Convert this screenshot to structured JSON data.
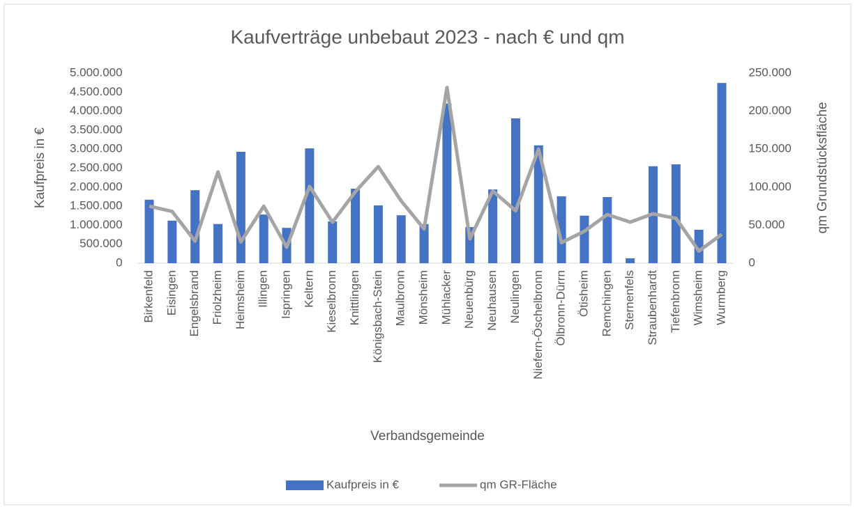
{
  "chart_data": {
    "type": "bar-line",
    "title": "Kaufverträge unbebaut 2023 - nach € und qm",
    "x_label": "Verbandsgemeinde",
    "y_label": "Kaufpreis in €",
    "y2_label": "qm Grundstücksfläche",
    "categories": [
      "Birkenfeld",
      "Eisingen",
      "Engelsbrand",
      "Friolzheim",
      "Heimsheim",
      "Illingen",
      "Ispringen",
      "Keltern",
      "Kieselbronn",
      "Knittlingen",
      "Königsbach-Stein",
      "Maulbronn",
      "Mönsheim",
      "Mühlacker",
      "Neuenbürg",
      "Neuhausen",
      "Neulingen",
      "Niefern-Öschelbronn",
      "Ölbronn-Dürrn",
      "Ötisheim",
      "Remchingen",
      "Sternenfels",
      "Straubenhardt",
      "Tiefenbronn",
      "Wimsheim",
      "Wurmberg"
    ],
    "series": [
      {
        "name": "Kaufpreis in €",
        "type": "bar",
        "color": "#4472c4",
        "axis": "y",
        "values": [
          1670000,
          1120000,
          1920000,
          1030000,
          2930000,
          1280000,
          930000,
          3020000,
          1100000,
          1960000,
          1520000,
          1260000,
          1030000,
          4200000,
          950000,
          1940000,
          3810000,
          3100000,
          1760000,
          1250000,
          1740000,
          130000,
          2550000,
          2600000,
          880000,
          4740000
        ]
      },
      {
        "name": "qm GR-Fläche",
        "type": "line",
        "color": "#a5a5a5",
        "axis": "y2",
        "values": [
          75000,
          68000,
          29000,
          120000,
          28000,
          75000,
          21000,
          101000,
          54000,
          94000,
          127000,
          82000,
          45000,
          231000,
          32000,
          95000,
          69000,
          150000,
          27000,
          42000,
          64000,
          54000,
          65000,
          59000,
          16000,
          38000
        ]
      }
    ],
    "ylim": [
      0,
      5000000
    ],
    "yticks": [
      0,
      {
        "value": 500000,
        "label": "500.000"
      },
      {
        "value": 1000000,
        "label": "1.000.000"
      },
      {
        "value": 1500000,
        "label": "1.500.000"
      },
      {
        "value": 2000000,
        "label": "2.000.000"
      },
      {
        "value": 2500000,
        "label": "2.500.000"
      },
      {
        "value": 3000000,
        "label": "3.000.000"
      },
      {
        "value": 3500000,
        "label": "3.500.000"
      },
      {
        "value": 4000000,
        "label": "4.000.000"
      },
      {
        "value": 4500000,
        "label": "4.500.000"
      },
      {
        "value": 5000000,
        "label": "5.000.000"
      }
    ],
    "y2lim": [
      0,
      250000
    ],
    "y2ticks": [
      0,
      {
        "value": 50000,
        "label": "50.000"
      },
      {
        "value": 100000,
        "label": "100.000"
      },
      {
        "value": 150000,
        "label": "150.000"
      },
      {
        "value": 200000,
        "label": "200.000"
      },
      {
        "value": 250000,
        "label": "250.000"
      }
    ]
  }
}
